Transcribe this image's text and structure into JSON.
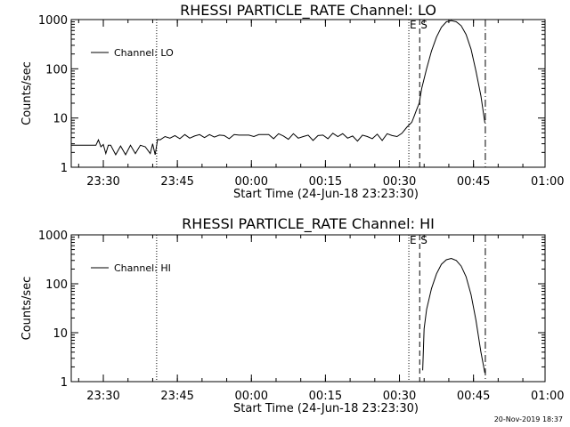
{
  "chart_data": [
    {
      "type": "line",
      "title": "RHESSI PARTICLE_RATE Channel: LO",
      "xlabel": "Start Time (24-Jun-18 23:23:30)",
      "ylabel": "Counts/sec",
      "yscale": "log",
      "ylim": [
        1,
        1000
      ],
      "xlim_minutes_from_start": [
        0,
        96
      ],
      "x_ticks": [
        {
          "label": "23:30",
          "minutes": 6.5
        },
        {
          "label": "23:45",
          "minutes": 21.5
        },
        {
          "label": "00:00",
          "minutes": 36.5
        },
        {
          "label": "00:15",
          "minutes": 51.5
        },
        {
          "label": "00:30",
          "minutes": 66.5
        },
        {
          "label": "00:45",
          "minutes": 81.5
        },
        {
          "label": "01:00",
          "minutes": 96.5
        }
      ],
      "y_ticks": [
        {
          "label": "1",
          "value": 1
        },
        {
          "label": "10",
          "value": 10
        },
        {
          "label": "100",
          "value": 100
        },
        {
          "label": "1000",
          "value": 1000
        }
      ],
      "legend": {
        "label": "Channel: LO",
        "position": "top-left"
      },
      "markers": [
        {
          "style": "dotted",
          "minutes": 17.3,
          "label": ""
        },
        {
          "style": "dotted",
          "minutes": 68.4,
          "label": "E"
        },
        {
          "style": "dashed",
          "minutes": 70.6,
          "label": "S"
        },
        {
          "style": "dashdot",
          "minutes": 83.9,
          "label": ""
        }
      ],
      "series": [
        {
          "x": [
            0,
            1,
            2,
            3,
            4,
            5,
            5.5,
            6,
            6.5,
            7,
            7.5,
            8,
            9,
            10,
            11,
            12,
            13,
            14,
            15,
            16,
            16.5,
            17,
            17.5,
            18,
            19,
            20,
            21,
            22,
            23,
            24,
            25,
            26,
            27,
            28,
            29,
            30,
            31,
            32,
            33,
            34,
            35,
            36,
            37,
            38,
            39,
            40,
            41,
            42,
            43,
            44,
            45,
            46,
            47,
            48,
            49,
            50,
            51,
            52,
            53,
            54,
            55,
            56,
            57,
            58,
            59,
            60,
            61,
            62,
            63,
            64,
            65,
            66,
            67,
            68,
            69,
            69.5,
            70,
            70.5,
            71,
            72,
            73,
            74,
            75,
            76,
            77,
            78,
            79,
            80,
            81,
            82,
            83,
            83.8
          ],
          "values": [
            2.8,
            2.8,
            2.8,
            2.8,
            2.8,
            2.8,
            3.6,
            2.6,
            2.9,
            1.9,
            2.8,
            2.8,
            1.8,
            2.7,
            1.8,
            2.8,
            1.9,
            2.8,
            2.6,
            1.9,
            3,
            1.8,
            3.7,
            3.6,
            4.2,
            3.9,
            4.4,
            3.8,
            4.6,
            3.9,
            4.3,
            4.6,
            4,
            4.6,
            4.1,
            4.5,
            4.4,
            3.8,
            4.6,
            4.5,
            4.5,
            4.5,
            4.2,
            4.6,
            4.6,
            4.6,
            3.8,
            4.8,
            4.3,
            3.7,
            4.8,
            3.9,
            4.2,
            4.5,
            3.5,
            4.4,
            4.5,
            3.8,
            4.9,
            4.2,
            4.8,
            3.9,
            4.3,
            3.4,
            4.5,
            4.2,
            3.8,
            4.7,
            3.5,
            4.8,
            4.4,
            4.2,
            4.9,
            6.5,
            8.2,
            11,
            15,
            20,
            40,
            100,
            230,
            440,
            700,
            900,
            950,
            900,
            750,
            500,
            250,
            90,
            28,
            8
          ],
          "note_x_units": "minutes from start"
        }
      ]
    },
    {
      "type": "line",
      "title": "RHESSI PARTICLE_RATE Channel: HI",
      "xlabel": "Start Time (24-Jun-18 23:23:30)",
      "ylabel": "Counts/sec",
      "yscale": "log",
      "ylim": [
        1,
        1000
      ],
      "xlim_minutes_from_start": [
        0,
        96
      ],
      "x_ticks": [
        {
          "label": "23:30",
          "minutes": 6.5
        },
        {
          "label": "23:45",
          "minutes": 21.5
        },
        {
          "label": "00:00",
          "minutes": 36.5
        },
        {
          "label": "00:15",
          "minutes": 51.5
        },
        {
          "label": "00:30",
          "minutes": 66.5
        },
        {
          "label": "00:45",
          "minutes": 81.5
        },
        {
          "label": "01:00",
          "minutes": 96.5
        }
      ],
      "y_ticks": [
        {
          "label": "1",
          "value": 1
        },
        {
          "label": "10",
          "value": 10
        },
        {
          "label": "100",
          "value": 100
        },
        {
          "label": "1000",
          "value": 1000
        }
      ],
      "legend": {
        "label": "Channel: HI",
        "position": "top-left"
      },
      "markers": [
        {
          "style": "dotted",
          "minutes": 17.3,
          "label": ""
        },
        {
          "style": "dotted",
          "minutes": 68.4,
          "label": "E"
        },
        {
          "style": "dashed",
          "minutes": 70.6,
          "label": "S"
        },
        {
          "style": "dashdot",
          "minutes": 83.9,
          "label": ""
        }
      ],
      "series": [
        {
          "x": [
            71.2,
            71.5,
            72,
            73,
            74,
            75,
            76,
            77,
            78,
            79,
            80,
            81,
            82,
            83,
            83.8
          ],
          "values": [
            1.7,
            12,
            30,
            80,
            160,
            250,
            310,
            330,
            300,
            230,
            140,
            60,
            18,
            4,
            1.5
          ]
        }
      ]
    }
  ],
  "footer": {
    "timestamp": "20-Nov-2019 18:37"
  }
}
